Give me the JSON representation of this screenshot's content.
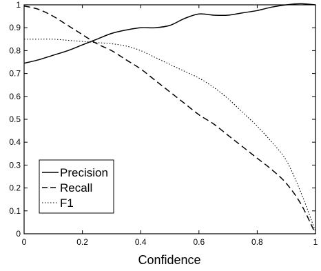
{
  "chart_data": {
    "type": "line",
    "title": "",
    "xlabel": "Confidence",
    "ylabel": "",
    "xlim": [
      0,
      1
    ],
    "ylim": [
      0,
      1
    ],
    "xticks": [
      "0",
      "0.2",
      "0.4",
      "0.6",
      "0.8",
      "1"
    ],
    "yticks": [
      "0",
      "0.1",
      "0.2",
      "0.3",
      "0.4",
      "0.5",
      "0.6",
      "0.7",
      "0.8",
      "0.9",
      "1"
    ],
    "grid": false,
    "legend_position": "bottom-left",
    "series": [
      {
        "name": "Precision",
        "style": "solid",
        "color": "#000000",
        "x": [
          0,
          0.05,
          0.1,
          0.15,
          0.2,
          0.25,
          0.3,
          0.35,
          0.4,
          0.45,
          0.5,
          0.55,
          0.6,
          0.65,
          0.7,
          0.75,
          0.8,
          0.85,
          0.9,
          0.95,
          1.0
        ],
        "y": [
          0.745,
          0.76,
          0.78,
          0.8,
          0.825,
          0.85,
          0.875,
          0.89,
          0.9,
          0.9,
          0.91,
          0.94,
          0.96,
          0.955,
          0.955,
          0.965,
          0.975,
          0.99,
          1.0,
          1.005,
          1.0
        ]
      },
      {
        "name": "Recall",
        "style": "dashed",
        "color": "#000000",
        "x": [
          0,
          0.05,
          0.1,
          0.15,
          0.2,
          0.25,
          0.3,
          0.35,
          0.4,
          0.45,
          0.5,
          0.55,
          0.6,
          0.65,
          0.7,
          0.75,
          0.8,
          0.85,
          0.9,
          0.95,
          1.0
        ],
        "y": [
          0.995,
          0.98,
          0.95,
          0.91,
          0.87,
          0.83,
          0.8,
          0.76,
          0.72,
          0.67,
          0.62,
          0.57,
          0.52,
          0.48,
          0.43,
          0.38,
          0.33,
          0.28,
          0.22,
          0.13,
          0.0
        ]
      },
      {
        "name": "F1",
        "style": "dotted",
        "color": "#000000",
        "x": [
          0,
          0.05,
          0.1,
          0.15,
          0.2,
          0.25,
          0.3,
          0.35,
          0.4,
          0.45,
          0.5,
          0.55,
          0.6,
          0.65,
          0.7,
          0.75,
          0.8,
          0.85,
          0.9,
          0.95,
          1.0
        ],
        "y": [
          0.85,
          0.85,
          0.85,
          0.845,
          0.84,
          0.835,
          0.83,
          0.82,
          0.8,
          0.77,
          0.74,
          0.71,
          0.68,
          0.64,
          0.59,
          0.53,
          0.47,
          0.4,
          0.32,
          0.18,
          0.01
        ]
      }
    ]
  }
}
